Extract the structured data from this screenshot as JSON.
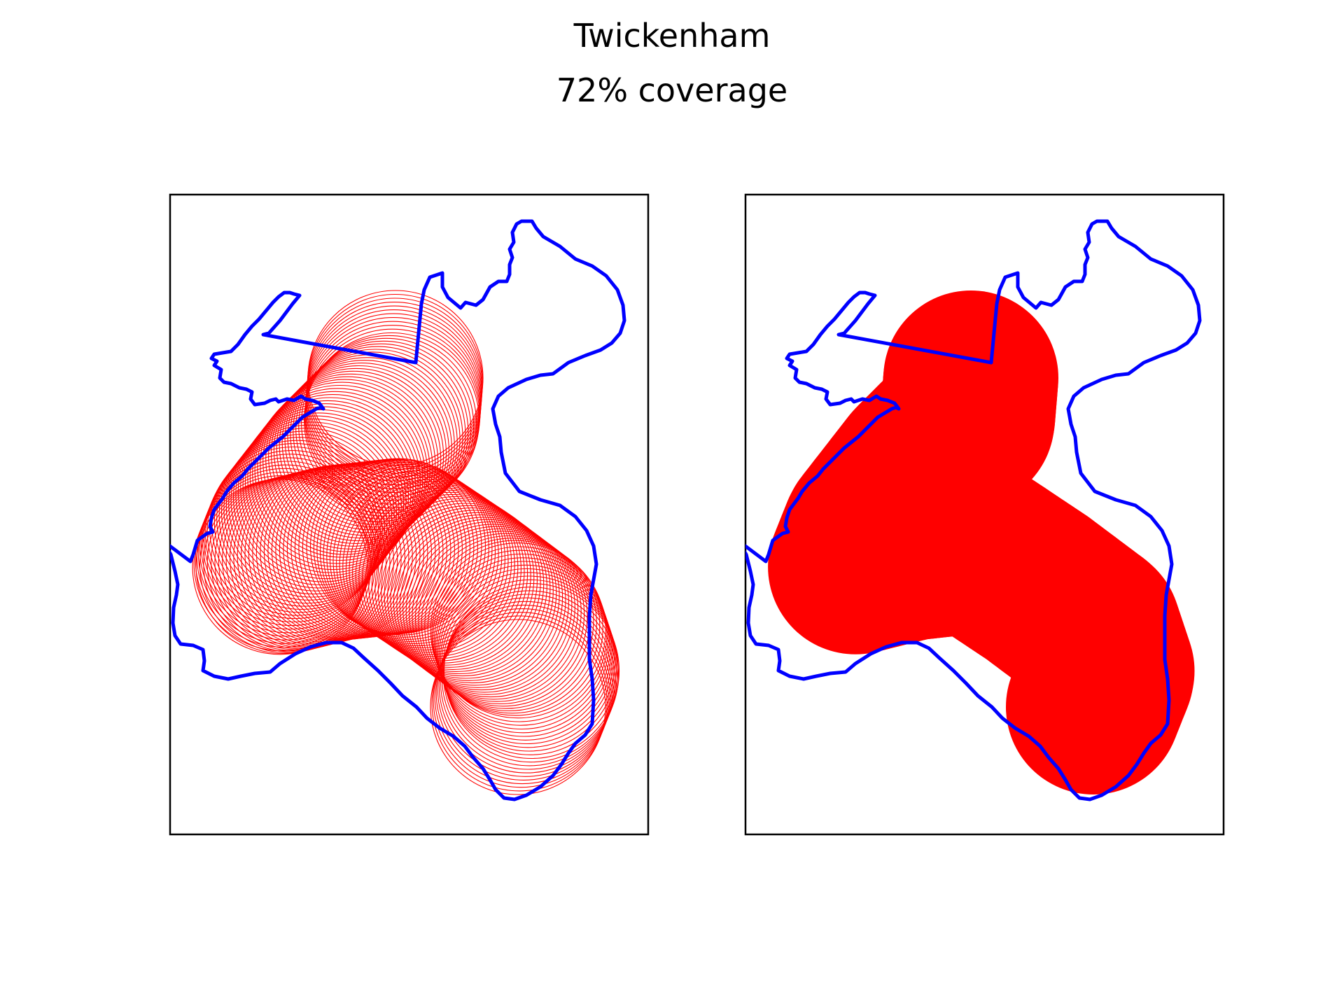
{
  "figure": {
    "title": "Twickenham",
    "subtitle": "72% coverage"
  },
  "colors": {
    "boundary": "#0000ff",
    "coverage": "#ff0000",
    "frame": "#000000",
    "background": "#ffffff"
  },
  "panels": [
    {
      "name": "circle-outlines",
      "coverage_style": "outlined-circles"
    },
    {
      "name": "coverage-union",
      "coverage_style": "filled-union"
    }
  ]
}
